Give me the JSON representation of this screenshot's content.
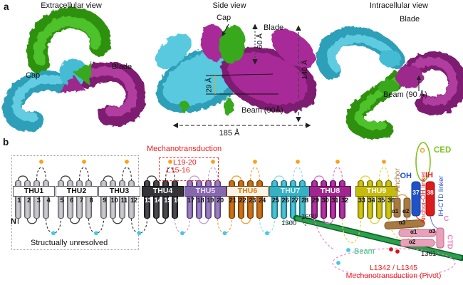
{
  "panel_a": {
    "label": "a",
    "extracellular": {
      "title": "Extracellular view",
      "cap": "Cap",
      "blade": "Blade"
    },
    "side": {
      "title": "Side view",
      "cap": "Cap",
      "blade": "Blade",
      "beam": "Beam (90Å)",
      "cap_height": "60 Å",
      "total_height": "140 Å",
      "width": "185 Å",
      "offset": "29 Å"
    },
    "intracellular": {
      "title": "Intracellular view",
      "blade": "Blade",
      "beam": "Beam (90 Å)"
    },
    "subunit_colors": {
      "green": "#3aa819",
      "cyan": "#45bcd4",
      "magenta": "#9c2a8c"
    }
  },
  "panel_b": {
    "label": "b",
    "n_terminus": "N",
    "unresolved_note": "Structually unresolved",
    "mechano_box": {
      "title": "Mechanotransduction",
      "loop1": "L19-20",
      "loop2": "L15-16"
    },
    "thus": [
      {
        "name": "THU1",
        "helices": [
          "1",
          "2",
          "3",
          "4"
        ],
        "cyl": "#c9c9ce",
        "cyl_dark": "#8f9096",
        "edge": "#5f5f66",
        "label_bg": "#ffffff",
        "label_fg": "#111111",
        "num_fg": "#111111",
        "loop": "#3a3a3a"
      },
      {
        "name": "THU2",
        "helices": [
          "5",
          "6",
          "7",
          "8"
        ],
        "cyl": "#c9c9ce",
        "cyl_dark": "#8f9096",
        "edge": "#5f5f66",
        "label_bg": "#ffffff",
        "label_fg": "#111111",
        "num_fg": "#111111",
        "loop": "#3a3a3a"
      },
      {
        "name": "THU3",
        "helices": [
          "9",
          "10",
          "11",
          "12"
        ],
        "cyl": "#c9c9ce",
        "cyl_dark": "#8f9096",
        "edge": "#5f5f66",
        "label_bg": "#ffffff",
        "label_fg": "#111111",
        "num_fg": "#111111",
        "loop": "#3a3a3a"
      },
      {
        "name": "THU4",
        "helices": [
          "13",
          "14",
          "15",
          "16"
        ],
        "cyl": "#4a4a4f",
        "cyl_dark": "#222226",
        "edge": "#141417",
        "label_bg": "#333338",
        "label_fg": "#ffffff",
        "num_fg": "#ffffff",
        "loop": "#3a3a3a"
      },
      {
        "name": "THU5",
        "helices": [
          "17",
          "18",
          "19",
          "20"
        ],
        "cyl": "#9a7fbc",
        "cyl_dark": "#6b4f96",
        "edge": "#53377c",
        "label_bg": "#8668ac",
        "label_fg": "#eadcfa",
        "num_fg": "#111111",
        "loop": "#b9a1d6"
      },
      {
        "name": "THU6",
        "helices": [
          "21",
          "22",
          "23",
          "24"
        ],
        "cyl": "#cc7014",
        "cyl_dark": "#92500a",
        "edge": "#713d04",
        "label_bg": "#faf4e6",
        "label_fg": "#e27b12",
        "num_fg": "#111111",
        "loop": "#f0a030"
      },
      {
        "name": "THU7",
        "helices": [
          "25",
          "26",
          "27",
          "28"
        ],
        "cyl": "#4cc2d2",
        "cyl_dark": "#238ea2",
        "edge": "#176e80",
        "label_bg": "#37b0c2",
        "label_fg": "#d8f6fa",
        "num_fg": "#111111",
        "loop": "#8adbe8"
      },
      {
        "name": "THU8",
        "helices": [
          "29",
          "30",
          "31",
          "32"
        ],
        "cyl": "#b134a0",
        "cyl_dark": "#7d1670",
        "edge": "#5e0e54",
        "label_bg": "#a1258e",
        "label_fg": "#ffffff",
        "num_fg": "#111111",
        "loop": "#e06ed0"
      },
      {
        "name": "THU9",
        "helices": [
          "33",
          "34",
          "35",
          "36"
        ],
        "cyl": "#cfc513",
        "cyl_dark": "#9c9408",
        "edge": "#767004",
        "label_bg": "#c5bb0e",
        "label_fg": "#fffef0",
        "num_fg": "#111111",
        "loop": "#ded435"
      }
    ],
    "anchor": {
      "label": "Anchor",
      "h1": "α1",
      "h2": "α2",
      "h3": "α3",
      "color": "#a87a42"
    },
    "oh": {
      "label": "OH",
      "helix": "37",
      "color": "#1e53c8"
    },
    "ih": {
      "label": "IH",
      "helix": "38",
      "color": "#d91c1c"
    },
    "linkers": {
      "anchor_oh": "Anchor-OH linker",
      "ih_ctd": "IH-CTD linker"
    },
    "ced": {
      "label": "CED",
      "color": "#7cc41e"
    },
    "ctd": {
      "label": "CTD",
      "h1": "α1",
      "h2": "α2",
      "h3": "α3",
      "c_terminus": "C",
      "color": "#f07fbc"
    },
    "beam": {
      "label": "Beam",
      "res_left": "1300",
      "res_top": "1690",
      "res_right": "1361",
      "color": "#2aa04b"
    },
    "pivot": {
      "line1": "L1342 / L1345",
      "line2": "Mechanotransduction (Pivot)"
    },
    "dot_colors": {
      "extracellular_loop": "#f6a21c",
      "intracellular_loop": "#41c9e8",
      "pivot_residue": "#e01010"
    }
  }
}
